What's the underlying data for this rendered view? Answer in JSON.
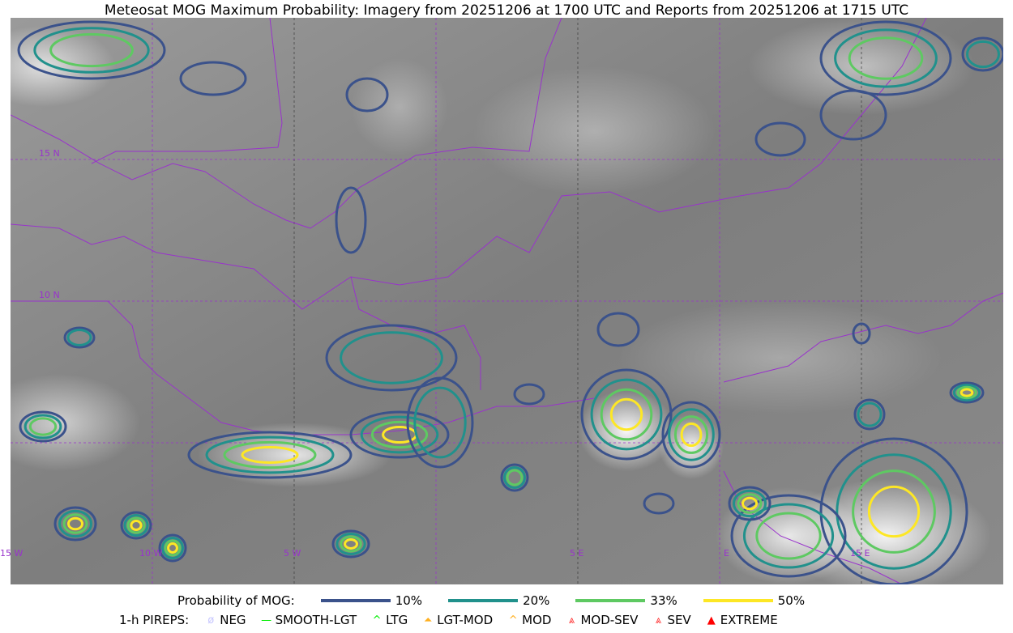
{
  "title": "Meteosat MOG Maximum Probability: Imagery from 20251206 at 1700 UTC and Reports from 20251206 at 1715 UTC",
  "map": {
    "lat_labels": [
      "15 N",
      "10 N"
    ],
    "lon_labels": [
      "15 W",
      "10 W",
      "5 W",
      "5 E",
      "E",
      "15 E"
    ],
    "border_color": "#9933cc",
    "grid_color": "#555555"
  },
  "legend": {
    "probability_label": "Probability of MOG:",
    "levels": [
      {
        "label": "10%",
        "color": "#3b528b"
      },
      {
        "label": "20%",
        "color": "#21918c"
      },
      {
        "label": "33%",
        "color": "#5ec962"
      },
      {
        "label": "50%",
        "color": "#fde725"
      }
    ],
    "pireps_label": "1-h PIREPS:",
    "pireps": [
      {
        "label": "NEG",
        "icon": "neg-icon",
        "color": "#c8c8ff",
        "glyph": "ø"
      },
      {
        "label": "SMOOTH-LGT",
        "icon": "smooth-lgt-icon",
        "color": "#00ee00",
        "glyph": "—"
      },
      {
        "label": "LTG",
        "icon": "ltg-icon",
        "color": "#00ee00",
        "glyph": "^"
      },
      {
        "label": "LGT-MOD",
        "icon": "lgt-mod-icon",
        "color": "#ffb020",
        "glyph": "⏶"
      },
      {
        "label": "MOD",
        "icon": "mod-icon",
        "color": "#ffb020",
        "glyph": "^"
      },
      {
        "label": "MOD-SEV",
        "icon": "mod-sev-icon",
        "color": "#ff3030",
        "glyph": "⩓"
      },
      {
        "label": "SEV",
        "icon": "sev-icon",
        "color": "#ff3030",
        "glyph": "⩓"
      },
      {
        "label": "EXTREME",
        "icon": "extreme-icon",
        "color": "#ff0000",
        "glyph": "▲"
      }
    ]
  }
}
